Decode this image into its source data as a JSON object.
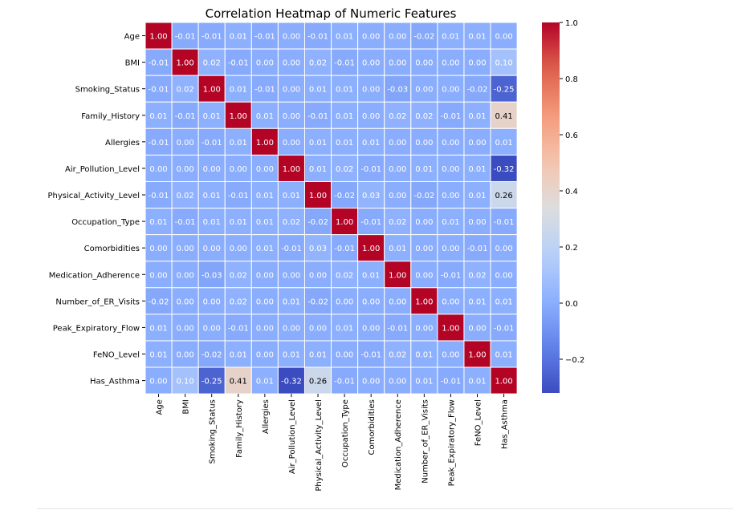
{
  "chart_data": {
    "type": "heatmap",
    "title": "Correlation Heatmap of Numeric Features",
    "labels": [
      "Age",
      "BMI",
      "Smoking_Status",
      "Family_History",
      "Allergies",
      "Air_Pollution_Level",
      "Physical_Activity_Level",
      "Occupation_Type",
      "Comorbidities",
      "Medication_Adherence",
      "Number_of_ER_Visits",
      "Peak_Expiratory_Flow",
      "FeNO_Level",
      "Has_Asthma"
    ],
    "matrix": [
      [
        1.0,
        -0.01,
        -0.01,
        0.01,
        -0.01,
        0.0,
        -0.01,
        0.01,
        -0.0,
        -0.0,
        -0.02,
        0.01,
        0.01,
        -0.0
      ],
      [
        -0.01,
        1.0,
        0.02,
        -0.01,
        -0.0,
        -0.0,
        0.02,
        -0.01,
        -0.0,
        -0.0,
        0.0,
        -0.0,
        -0.0,
        0.1
      ],
      [
        -0.01,
        0.02,
        1.0,
        0.01,
        -0.01,
        0.0,
        0.01,
        0.01,
        -0.0,
        -0.03,
        -0.0,
        -0.0,
        -0.02,
        -0.25
      ],
      [
        0.01,
        -0.01,
        0.01,
        1.0,
        0.01,
        0.0,
        -0.01,
        0.01,
        -0.0,
        0.02,
        0.02,
        -0.01,
        0.01,
        0.41
      ],
      [
        -0.01,
        -0.0,
        -0.01,
        0.01,
        1.0,
        0.0,
        0.01,
        0.01,
        0.01,
        -0.0,
        -0.0,
        -0.0,
        -0.0,
        0.01
      ],
      [
        0.0,
        -0.0,
        0.0,
        0.0,
        0.0,
        1.0,
        0.01,
        0.02,
        -0.01,
        -0.0,
        0.01,
        -0.0,
        0.01,
        -0.32
      ],
      [
        -0.01,
        0.02,
        0.01,
        -0.01,
        0.01,
        0.01,
        1.0,
        -0.02,
        0.03,
        0.0,
        -0.02,
        0.0,
        0.01,
        0.26
      ],
      [
        0.01,
        -0.01,
        0.01,
        0.01,
        0.01,
        0.02,
        -0.02,
        1.0,
        -0.01,
        0.02,
        -0.0,
        0.01,
        0.0,
        -0.01
      ],
      [
        -0.0,
        -0.0,
        -0.0,
        -0.0,
        0.01,
        -0.01,
        0.03,
        -0.01,
        1.0,
        0.01,
        -0.0,
        0.0,
        -0.01,
        0.0
      ],
      [
        -0.0,
        -0.0,
        -0.03,
        0.02,
        -0.0,
        -0.0,
        0.0,
        0.02,
        0.01,
        1.0,
        0.0,
        -0.01,
        0.02,
        0.0
      ],
      [
        -0.02,
        0.0,
        -0.0,
        0.02,
        -0.0,
        0.01,
        -0.02,
        -0.0,
        -0.0,
        0.0,
        1.0,
        0.0,
        0.01,
        0.01
      ],
      [
        0.01,
        -0.0,
        -0.0,
        -0.01,
        -0.0,
        -0.0,
        0.0,
        0.01,
        0.0,
        -0.01,
        0.0,
        1.0,
        -0.0,
        -0.01
      ],
      [
        0.01,
        -0.0,
        -0.02,
        0.01,
        -0.0,
        0.01,
        0.01,
        0.0,
        -0.01,
        0.02,
        0.01,
        -0.0,
        1.0,
        0.01
      ],
      [
        -0.0,
        0.1,
        -0.25,
        0.41,
        0.01,
        -0.32,
        0.26,
        -0.01,
        0.0,
        0.0,
        0.01,
        -0.01,
        0.01,
        1.0
      ]
    ],
    "colormap": "coolwarm",
    "colorbar": {
      "min": -0.32,
      "max": 1.0,
      "ticks": [
        1.0,
        0.8,
        0.6,
        0.4,
        0.2,
        0.0,
        -0.2
      ],
      "tick_labels": [
        "1.0",
        "0.8",
        "0.6",
        "0.4",
        "0.2",
        "0.0",
        "−0.2"
      ]
    },
    "colors": {
      "cool": "#3b4cc0",
      "mid": "#dddddd",
      "warm": "#b40426",
      "cell_border": "#ffffff"
    },
    "annotations_decimals": 2,
    "grid": false
  }
}
